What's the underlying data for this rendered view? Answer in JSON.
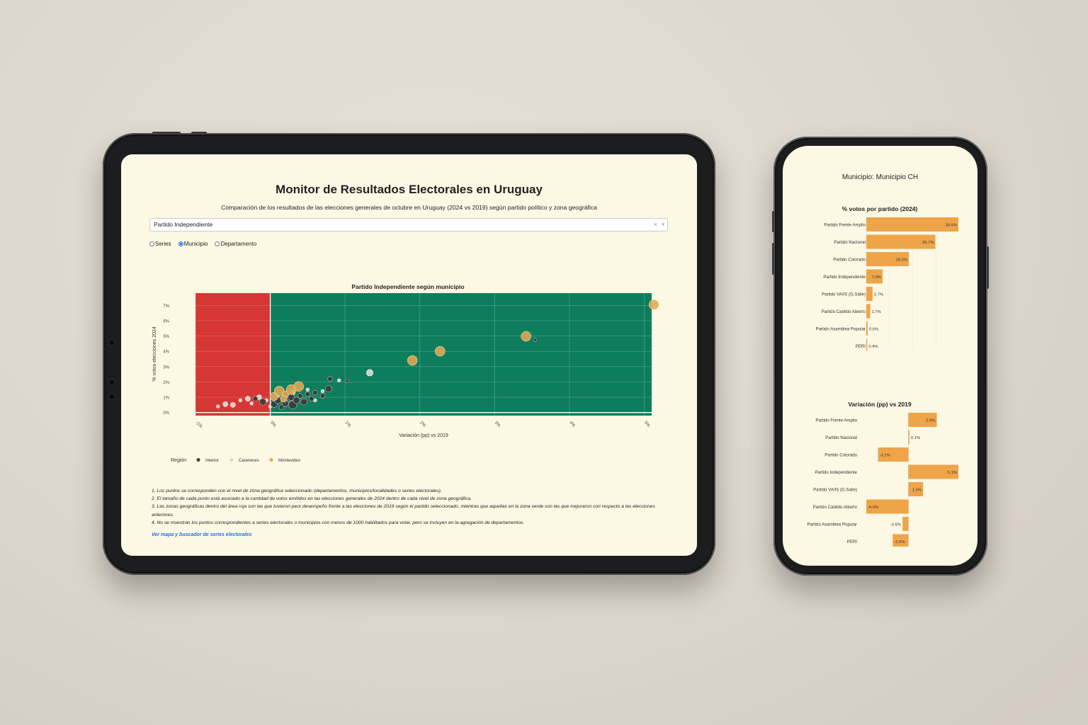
{
  "dashboard": {
    "title": "Monitor de Resultados Electorales en Uruguay",
    "subtitle": "Comparación de los resultados de las elecciones generales de octubre en Uruguay (2024 vs 2019) según partido político y zona geográfica",
    "party_select": {
      "value": "Partido Independiente",
      "clear_icon": "×",
      "arrow_icon": "▾"
    },
    "level_options": [
      {
        "label": "Series",
        "selected": false
      },
      {
        "label": "Municipio",
        "selected": true
      },
      {
        "label": "Departamento",
        "selected": false
      }
    ],
    "notes": [
      "1. Los puntos se corresponden con el nivel de zona geográfica seleccionado (departamentos, municipios/localidades o series electorales).",
      "2. El tamaño de cada punto está asociado a la cantidad de votos emitidos en las elecciones generales de 2024 dentro de cada nivel de zona geográfica.",
      "3. Las zonas geográficas dentro del área roja son las que tuvieron peor desempeño frente a las elecciones de 2019 según el partido seleccionado, mientras que aquellas en la zona verde son las que mejoraron con respecto a las elecciones anteriores.",
      "4. No se muestran los puntos correspondientes a series electorales o municipios con menos de 1000 habilitados para votar, pero se incluyen en la agregación de departamentos."
    ],
    "link": "Ver mapa y buscador de series electorales",
    "colors": {
      "red_zone": "#d63634",
      "green_zone": "#0e7d5d",
      "interior": "#3b3b3b",
      "canelones": "#d9d9d9",
      "montevideo": "#e2a853",
      "bars": "#eea448"
    }
  },
  "chart_data": [
    {
      "type": "scatter",
      "title": "Partido Independiente según municipio",
      "xlabel": "Variación (pp) vs 2019",
      "ylabel": "% votos elecciones 2024",
      "xlim": [
        -1,
        5.1
      ],
      "ylim": [
        -0.2,
        7.8
      ],
      "x_ticks": [
        "-1%",
        "0%",
        "1%",
        "2%",
        "3%",
        "4%",
        "5%"
      ],
      "y_ticks": [
        "0%",
        "1%",
        "2%",
        "3%",
        "4%",
        "5%",
        "6%",
        "7%"
      ],
      "grid": true,
      "legend_title": "Región",
      "legend_position": "bottom",
      "shaded_regions": [
        {
          "x_range": [
            -1,
            0
          ],
          "meaning": "worse",
          "color": "#d63634"
        },
        {
          "x_range": [
            0,
            5.1
          ],
          "meaning": "better",
          "color": "#0e7d5d"
        }
      ],
      "series": [
        {
          "name": "Interior",
          "color": "#3b3b3b",
          "points": [
            {
              "x": 0.05,
              "y": 0.55,
              "size": 3
            },
            {
              "x": 0.1,
              "y": 0.8,
              "size": 3
            },
            {
              "x": 0.15,
              "y": 0.35,
              "size": 2
            },
            {
              "x": 0.2,
              "y": 0.6,
              "size": 3
            },
            {
              "x": 0.25,
              "y": 0.9,
              "size": 2
            },
            {
              "x": 0.3,
              "y": 0.5,
              "size": 4
            },
            {
              "x": 0.28,
              "y": 1.0,
              "size": 3
            },
            {
              "x": 0.35,
              "y": 0.8,
              "size": 3
            },
            {
              "x": 0.4,
              "y": 1.1,
              "size": 2
            },
            {
              "x": 0.45,
              "y": 0.7,
              "size": 3
            },
            {
              "x": 0.5,
              "y": 1.2,
              "size": 2
            },
            {
              "x": 0.55,
              "y": 0.9,
              "size": 2
            },
            {
              "x": 0.6,
              "y": 1.3,
              "size": 2
            },
            {
              "x": 0.7,
              "y": 1.1,
              "size": 2
            },
            {
              "x": 0.78,
              "y": 1.55,
              "size": 3
            },
            {
              "x": 0.8,
              "y": 2.2,
              "size": 2
            },
            {
              "x": 1.03,
              "y": 2.05,
              "size": 1
            },
            {
              "x": -0.1,
              "y": 0.7,
              "size": 3
            },
            {
              "x": -0.2,
              "y": 0.9,
              "size": 2
            },
            {
              "x": 3.54,
              "y": 4.75,
              "size": 1
            }
          ]
        },
        {
          "name": "Canelones",
          "color": "#d9d9d9",
          "points": [
            {
              "x": -0.5,
              "y": 0.5,
              "size": 2
            },
            {
              "x": -0.4,
              "y": 0.8,
              "size": 1
            },
            {
              "x": -0.3,
              "y": 0.9,
              "size": 2
            },
            {
              "x": -0.25,
              "y": 0.6,
              "size": 1
            },
            {
              "x": -0.15,
              "y": 1.0,
              "size": 2
            },
            {
              "x": -0.05,
              "y": 0.8,
              "size": 1
            },
            {
              "x": 0.1,
              "y": 1.1,
              "size": 1
            },
            {
              "x": 0.2,
              "y": 0.7,
              "size": 1
            },
            {
              "x": 0.3,
              "y": 1.3,
              "size": 2
            },
            {
              "x": 0.5,
              "y": 1.5,
              "size": 1
            },
            {
              "x": 0.6,
              "y": 0.8,
              "size": 1
            },
            {
              "x": 0.7,
              "y": 1.4,
              "size": 1
            },
            {
              "x": 0.92,
              "y": 2.1,
              "size": 1
            },
            {
              "x": 1.33,
              "y": 2.6,
              "size": 3
            },
            {
              "x": -0.6,
              "y": 0.55,
              "size": 2
            },
            {
              "x": -0.7,
              "y": 0.4,
              "size": 1
            },
            {
              "x": 0.0,
              "y": 0.4,
              "size": 1
            }
          ]
        },
        {
          "name": "Montevideo",
          "color": "#e2a853",
          "points": [
            {
              "x": 0.05,
              "y": 1.05,
              "size": 4
            },
            {
              "x": 0.12,
              "y": 1.4,
              "size": 5
            },
            {
              "x": 0.2,
              "y": 1.2,
              "size": 3
            },
            {
              "x": 0.28,
              "y": 1.5,
              "size": 5
            },
            {
              "x": 0.38,
              "y": 1.7,
              "size": 5
            },
            {
              "x": 0.18,
              "y": 0.9,
              "size": 3
            },
            {
              "x": 1.9,
              "y": 3.4,
              "size": 5
            },
            {
              "x": 2.27,
              "y": 4.0,
              "size": 5
            },
            {
              "x": 3.42,
              "y": 4.98,
              "size": 5
            },
            {
              "x": 5.13,
              "y": 7.05,
              "size": 5
            }
          ]
        }
      ]
    },
    {
      "type": "bar",
      "title": "% votos por partido (2024)",
      "orientation": "horizontal",
      "categories": [
        "Partido Frente Amplio",
        "Partido Nacional",
        "Partido Colorado",
        "Partido Independiente",
        "Partido VA/IS (G.Salle)",
        "Partido Cabildo Abierto",
        "Partido Asamblea Popular",
        "PERI"
      ],
      "values": [
        39.6,
        29.7,
        18.3,
        7.0,
        2.7,
        1.7,
        0.6,
        0.4
      ],
      "labels": [
        "39.6%",
        "29.7%",
        "18.3%",
        "7.0%",
        "2.7%",
        "1.7%",
        "0.6%",
        "0.4%"
      ],
      "color": "#eea448"
    },
    {
      "type": "bar",
      "title": "Variación (pp) vs 2019",
      "orientation": "horizontal",
      "categories": [
        "Partido Frente Amplio",
        "Partido Nacional",
        "Partido Colorado",
        "Partido Independiente",
        "Partido VA/IS (G.Salle)",
        "Partido Cabildo Abierto",
        "Partido Asamblea Popular",
        "PERI"
      ],
      "values": [
        2.9,
        0.1,
        -3.1,
        5.1,
        1.5,
        -4.3,
        -0.6,
        -1.6
      ],
      "labels": [
        "2.9%",
        "0.1%",
        "-3.1%",
        "5.1%",
        "1.5%",
        "-4.3%",
        "-0.6%",
        "-1.6%"
      ],
      "color": "#eea448"
    }
  ],
  "phone": {
    "title": "Municipio: Municipio CH"
  }
}
